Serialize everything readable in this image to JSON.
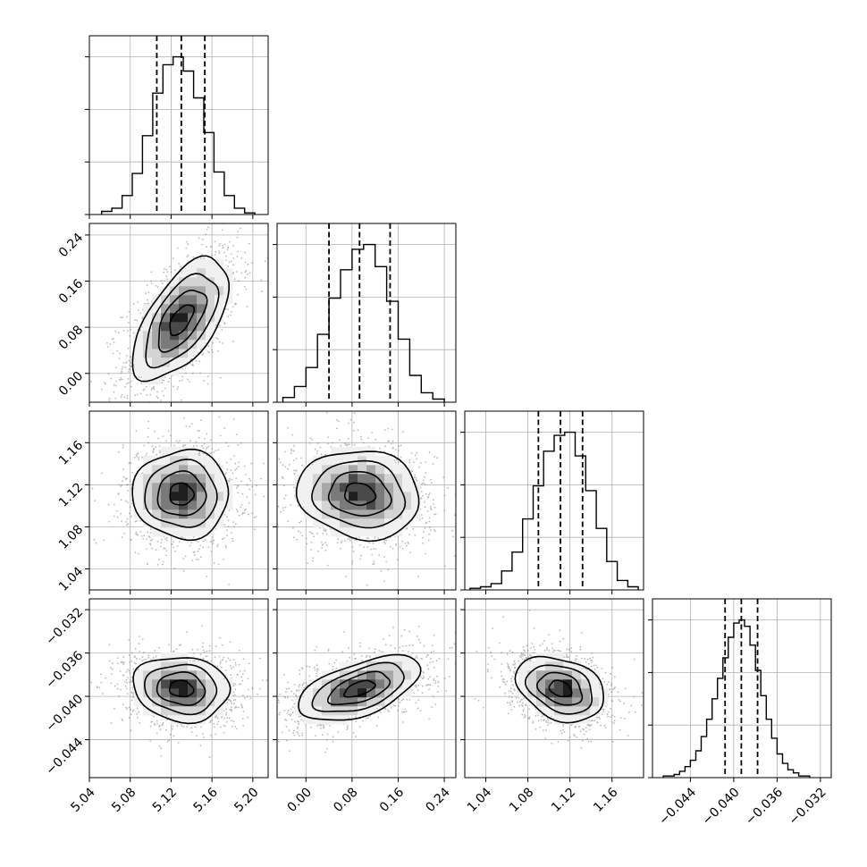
{
  "chart_data": {
    "type": "corner",
    "description": "corner plot of 4 parameters: 1-D histograms on diagonal with 16/50/84% quantile dashed lines; 2-D density (scatter + grayscale bins + contours) below diagonal",
    "grid": true,
    "parameters": [
      {
        "index": 0,
        "range": [
          5.04,
          5.215
        ],
        "ticks": [
          5.04,
          5.08,
          5.12,
          5.16,
          5.2
        ],
        "tick_labels": [
          "5.04",
          "5.08",
          "5.12",
          "5.16",
          "5.20"
        ],
        "median": 5.13,
        "quantiles": [
          5.106,
          5.13,
          5.153
        ],
        "sigma": 0.0235,
        "histogram": {
          "bin_edges": [
            5.052,
            5.062,
            5.072,
            5.082,
            5.092,
            5.102,
            5.112,
            5.122,
            5.132,
            5.142,
            5.152,
            5.162,
            5.172,
            5.182,
            5.192,
            5.202
          ],
          "counts": [
            0.02,
            0.04,
            0.12,
            0.26,
            0.5,
            0.77,
            0.95,
            1.0,
            0.91,
            0.74,
            0.52,
            0.27,
            0.12,
            0.04,
            0.01
          ]
        }
      },
      {
        "index": 1,
        "range": [
          -0.05,
          0.26
        ],
        "ticks": [
          0.0,
          0.08,
          0.16,
          0.24
        ],
        "tick_labels": [
          "0.00",
          "0.08",
          "0.16",
          "0.24"
        ],
        "median": 0.093,
        "quantiles": [
          0.04,
          0.093,
          0.146
        ],
        "sigma": 0.053,
        "histogram": {
          "bin_edges": [
            -0.04,
            -0.02,
            0.0,
            0.02,
            0.04,
            0.06,
            0.08,
            0.1,
            0.12,
            0.14,
            0.16,
            0.18,
            0.2,
            0.22,
            0.24
          ],
          "counts": [
            0.03,
            0.1,
            0.22,
            0.43,
            0.66,
            0.84,
            0.97,
            1.0,
            0.86,
            0.64,
            0.4,
            0.17,
            0.06,
            0.02
          ]
        }
      },
      {
        "index": 2,
        "range": [
          1.02,
          1.19
        ],
        "ticks": [
          1.04,
          1.08,
          1.12,
          1.16
        ],
        "tick_labels": [
          "1.04",
          "1.08",
          "1.12",
          "1.16"
        ],
        "median": 1.111,
        "quantiles": [
          1.09,
          1.111,
          1.132
        ],
        "sigma": 0.021,
        "histogram": {
          "bin_edges": [
            1.025,
            1.035,
            1.045,
            1.055,
            1.065,
            1.075,
            1.085,
            1.095,
            1.105,
            1.115,
            1.125,
            1.135,
            1.145,
            1.155,
            1.165,
            1.175,
            1.185
          ],
          "counts": [
            0.01,
            0.02,
            0.04,
            0.12,
            0.24,
            0.45,
            0.66,
            0.88,
            0.98,
            1.0,
            0.85,
            0.63,
            0.39,
            0.18,
            0.06,
            0.02
          ]
        }
      },
      {
        "index": 3,
        "range": [
          -0.0475,
          -0.031
        ],
        "ticks": [
          -0.044,
          -0.04,
          -0.036,
          -0.032
        ],
        "tick_labels": [
          "−0.044",
          "−0.040",
          "−0.036",
          "−0.032"
        ],
        "median": -0.0393,
        "quantiles": [
          -0.0408,
          -0.0393,
          -0.0378
        ],
        "sigma": 0.0015,
        "histogram": {
          "bin_edges": [
            -0.0465,
            -0.046,
            -0.0455,
            -0.045,
            -0.0445,
            -0.044,
            -0.0435,
            -0.043,
            -0.0425,
            -0.042,
            -0.0415,
            -0.041,
            -0.0405,
            -0.04,
            -0.0395,
            -0.039,
            -0.0385,
            -0.038,
            -0.0375,
            -0.037,
            -0.0365,
            -0.036,
            -0.0355,
            -0.035,
            -0.0345,
            -0.034,
            -0.0335,
            -0.033
          ],
          "counts": [
            0.01,
            0.01,
            0.02,
            0.04,
            0.07,
            0.11,
            0.17,
            0.26,
            0.37,
            0.5,
            0.63,
            0.76,
            0.89,
            0.98,
            1.0,
            0.96,
            0.84,
            0.68,
            0.52,
            0.37,
            0.25,
            0.15,
            0.09,
            0.05,
            0.03,
            0.01,
            0.01
          ]
        }
      }
    ],
    "correlations": [
      {
        "x": 0,
        "y": 1,
        "rho": 0.6
      },
      {
        "x": 0,
        "y": 2,
        "rho": 0.0
      },
      {
        "x": 1,
        "y": 2,
        "rho": -0.1
      },
      {
        "x": 0,
        "y": 3,
        "rho": -0.1
      },
      {
        "x": 1,
        "y": 3,
        "rho": 0.55
      },
      {
        "x": 2,
        "y": 3,
        "rho": -0.3
      }
    ]
  }
}
